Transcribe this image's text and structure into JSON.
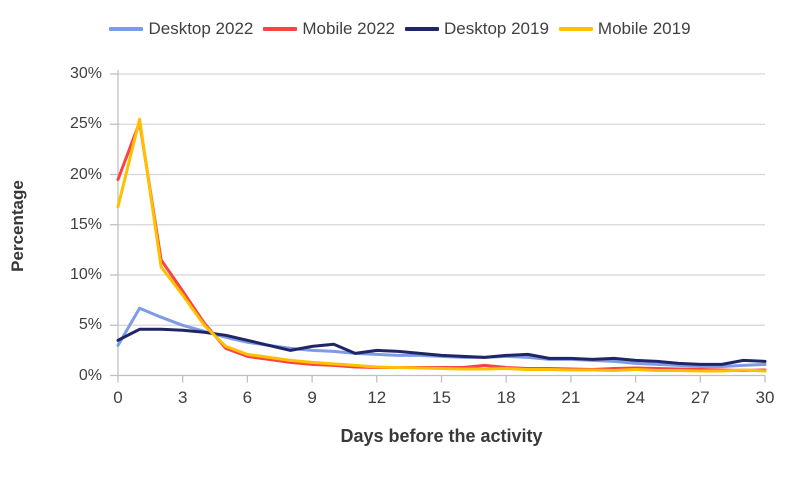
{
  "chart_data": {
    "type": "line",
    "title": "",
    "xlabel": "Days before the activity",
    "ylabel": "Percentage",
    "xlim": [
      0,
      30
    ],
    "ylim": [
      0,
      30
    ],
    "x": [
      0,
      1,
      2,
      3,
      4,
      5,
      6,
      7,
      8,
      9,
      10,
      11,
      12,
      13,
      14,
      15,
      16,
      17,
      18,
      19,
      20,
      21,
      22,
      23,
      24,
      25,
      26,
      27,
      28,
      29,
      30
    ],
    "x_ticks": [
      "0",
      "3",
      "6",
      "9",
      "12",
      "15",
      "18",
      "21",
      "24",
      "27",
      "30"
    ],
    "x_tick_values": [
      0,
      3,
      6,
      9,
      12,
      15,
      18,
      21,
      24,
      27,
      30
    ],
    "y_ticks": [
      "0%",
      "5%",
      "10%",
      "15%",
      "20%",
      "25%",
      "30%"
    ],
    "y_tick_values": [
      0,
      5,
      10,
      15,
      20,
      25,
      30
    ],
    "grid": "horizontal",
    "legend_position": "top",
    "colors": {
      "grid": "#D6D6D6",
      "axis": "#BFBFBF",
      "tick_text": "#404040",
      "title_text": "#383838"
    },
    "series": [
      {
        "name": "Desktop 2022",
        "color": "#7D9BE7",
        "values": [
          3.0,
          6.7,
          5.8,
          5.0,
          4.4,
          3.8,
          3.3,
          3.0,
          2.7,
          2.5,
          2.4,
          2.2,
          2.1,
          2.0,
          2.0,
          1.9,
          1.8,
          1.8,
          1.9,
          1.8,
          1.6,
          1.6,
          1.5,
          1.4,
          1.2,
          1.1,
          1.0,
          0.9,
          0.9,
          1.0,
          1.1
        ]
      },
      {
        "name": "Mobile 2022",
        "color": "#FA4343",
        "values": [
          19.5,
          25.2,
          11.5,
          8.4,
          5.2,
          2.7,
          1.9,
          1.6,
          1.3,
          1.1,
          1.0,
          0.85,
          0.8,
          0.8,
          0.8,
          0.8,
          0.8,
          1.0,
          0.8,
          0.7,
          0.7,
          0.65,
          0.6,
          0.7,
          0.75,
          0.7,
          0.65,
          0.6,
          0.55,
          0.5,
          0.55
        ]
      },
      {
        "name": "Desktop 2019",
        "color": "#1F2566",
        "values": [
          3.5,
          4.6,
          4.6,
          4.5,
          4.3,
          4.0,
          3.5,
          3.0,
          2.5,
          2.9,
          3.1,
          2.2,
          2.5,
          2.4,
          2.2,
          2.0,
          1.9,
          1.8,
          2.0,
          2.1,
          1.7,
          1.7,
          1.6,
          1.7,
          1.5,
          1.4,
          1.2,
          1.1,
          1.1,
          1.5,
          1.4
        ]
      },
      {
        "name": "Mobile 2019",
        "color": "#FFC000",
        "values": [
          16.8,
          25.5,
          10.8,
          8.0,
          5.0,
          2.9,
          2.1,
          1.8,
          1.5,
          1.3,
          1.15,
          1.0,
          0.85,
          0.8,
          0.75,
          0.7,
          0.65,
          0.65,
          0.7,
          0.6,
          0.6,
          0.55,
          0.55,
          0.5,
          0.6,
          0.5,
          0.5,
          0.45,
          0.45,
          0.55,
          0.45
        ]
      }
    ]
  }
}
